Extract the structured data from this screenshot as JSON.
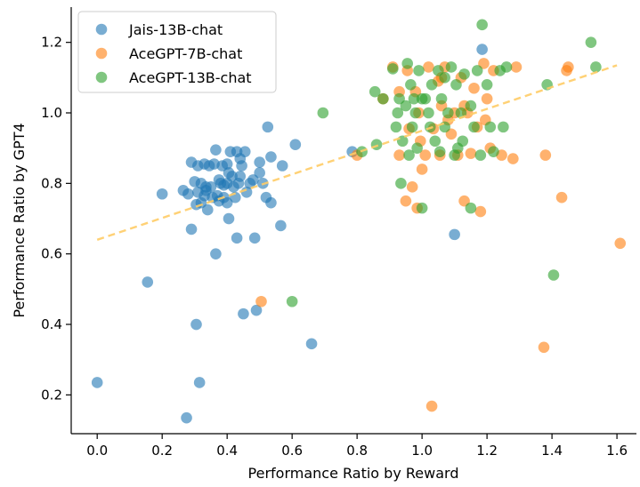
{
  "chart_data": {
    "type": "scatter",
    "xlabel": "Performance Ratio by Reward",
    "ylabel": "Performance Ratio by GPT4",
    "xlim": [
      -0.08,
      1.66
    ],
    "ylim": [
      0.09,
      1.3
    ],
    "x_ticks": [
      0.0,
      0.2,
      0.4,
      0.6,
      0.8,
      1.0,
      1.2,
      1.4,
      1.6
    ],
    "x_tick_labels": [
      "0.0",
      "0.2",
      "0.4",
      "0.6",
      "0.8",
      "1.0",
      "1.2",
      "1.4",
      "1.6"
    ],
    "y_ticks": [
      0.2,
      0.4,
      0.6,
      0.8,
      1.0,
      1.2
    ],
    "y_tick_labels": [
      "0.2",
      "0.4",
      "0.6",
      "0.8",
      "1.0",
      "1.2"
    ],
    "grid": false,
    "legend_position": "top-left",
    "trendline": {
      "style": "dashed",
      "color": "#ffcc66",
      "x": [
        0.0,
        1.6
      ],
      "y": [
        0.64,
        1.135
      ]
    },
    "series": [
      {
        "name": "Jais-13B-chat",
        "color": "#1f77b4",
        "points": [
          [
            0.0,
            0.235
          ],
          [
            0.155,
            0.52
          ],
          [
            0.2,
            0.77
          ],
          [
            0.265,
            0.78
          ],
          [
            0.275,
            0.135
          ],
          [
            0.28,
            0.77
          ],
          [
            0.29,
            0.67
          ],
          [
            0.29,
            0.86
          ],
          [
            0.3,
            0.805
          ],
          [
            0.305,
            0.4
          ],
          [
            0.305,
            0.74
          ],
          [
            0.31,
            0.85
          ],
          [
            0.31,
            0.775
          ],
          [
            0.315,
            0.235
          ],
          [
            0.32,
            0.8
          ],
          [
            0.32,
            0.745
          ],
          [
            0.33,
            0.765
          ],
          [
            0.33,
            0.855
          ],
          [
            0.335,
            0.79
          ],
          [
            0.335,
            0.78
          ],
          [
            0.34,
            0.725
          ],
          [
            0.345,
            0.85
          ],
          [
            0.35,
            0.79
          ],
          [
            0.355,
            0.76
          ],
          [
            0.36,
            0.855
          ],
          [
            0.365,
            0.6
          ],
          [
            0.365,
            0.895
          ],
          [
            0.37,
            0.765
          ],
          [
            0.375,
            0.75
          ],
          [
            0.38,
            0.8
          ],
          [
            0.385,
            0.85
          ],
          [
            0.39,
            0.795
          ],
          [
            0.39,
            0.76
          ],
          [
            0.4,
            0.745
          ],
          [
            0.4,
            0.8
          ],
          [
            0.4,
            0.855
          ],
          [
            0.405,
            0.7
          ],
          [
            0.41,
            0.89
          ],
          [
            0.415,
            0.82
          ],
          [
            0.42,
            0.79
          ],
          [
            0.425,
            0.76
          ],
          [
            0.43,
            0.645
          ],
          [
            0.43,
            0.89
          ],
          [
            0.435,
            0.8
          ],
          [
            0.44,
            0.82
          ],
          [
            0.445,
            0.85
          ],
          [
            0.45,
            0.43
          ],
          [
            0.455,
            0.89
          ],
          [
            0.46,
            0.775
          ],
          [
            0.47,
            0.8
          ],
          [
            0.48,
            0.81
          ],
          [
            0.485,
            0.645
          ],
          [
            0.49,
            0.44
          ],
          [
            0.5,
            0.86
          ],
          [
            0.5,
            0.83
          ],
          [
            0.51,
            0.8
          ],
          [
            0.52,
            0.76
          ],
          [
            0.525,
            0.96
          ],
          [
            0.535,
            0.745
          ],
          [
            0.535,
            0.875
          ],
          [
            0.565,
            0.68
          ],
          [
            0.57,
            0.85
          ],
          [
            0.61,
            0.91
          ],
          [
            0.66,
            0.345
          ],
          [
            0.785,
            0.89
          ],
          [
            1.1,
            0.655
          ],
          [
            1.185,
            1.18
          ],
          [
            0.405,
            0.83
          ],
          [
            0.44,
            0.87
          ],
          [
            0.375,
            0.81
          ]
        ]
      },
      {
        "name": "AceGPT-7B-chat",
        "color": "#ff7f0e",
        "points": [
          [
            0.505,
            0.465
          ],
          [
            0.8,
            0.88
          ],
          [
            0.88,
            1.04
          ],
          [
            0.91,
            1.13
          ],
          [
            0.93,
            0.88
          ],
          [
            0.95,
            0.75
          ],
          [
            0.955,
            1.12
          ],
          [
            0.96,
            0.955
          ],
          [
            0.97,
            0.79
          ],
          [
            0.98,
            1.06
          ],
          [
            0.985,
            0.73
          ],
          [
            0.99,
            1.0
          ],
          [
            0.995,
            0.92
          ],
          [
            1.0,
            0.84
          ],
          [
            1.01,
            0.88
          ],
          [
            1.02,
            1.13
          ],
          [
            1.03,
            0.168
          ],
          [
            1.035,
            0.955
          ],
          [
            1.05,
            1.09
          ],
          [
            1.055,
            0.88
          ],
          [
            1.06,
            1.02
          ],
          [
            1.07,
            1.13
          ],
          [
            1.08,
            0.98
          ],
          [
            1.09,
            0.94
          ],
          [
            1.1,
            1.0
          ],
          [
            1.11,
            0.88
          ],
          [
            1.12,
            1.1
          ],
          [
            1.13,
            0.75
          ],
          [
            1.14,
            1.0
          ],
          [
            1.15,
            0.885
          ],
          [
            1.16,
            1.07
          ],
          [
            1.17,
            0.96
          ],
          [
            1.18,
            0.72
          ],
          [
            1.19,
            1.14
          ],
          [
            1.2,
            1.04
          ],
          [
            1.21,
            0.9
          ],
          [
            1.22,
            1.12
          ],
          [
            1.245,
            0.88
          ],
          [
            1.28,
            0.87
          ],
          [
            1.29,
            1.13
          ],
          [
            1.375,
            0.335
          ],
          [
            1.38,
            0.88
          ],
          [
            1.43,
            0.76
          ],
          [
            1.445,
            1.12
          ],
          [
            1.45,
            1.13
          ],
          [
            1.61,
            0.63
          ],
          [
            0.93,
            1.06
          ],
          [
            1.06,
            1.1
          ],
          [
            1.13,
            1.02
          ],
          [
            1.195,
            0.98
          ]
        ]
      },
      {
        "name": "AceGPT-13B-chat",
        "color": "#2ca02c",
        "points": [
          [
            0.6,
            0.465
          ],
          [
            0.695,
            1.0
          ],
          [
            0.815,
            0.89
          ],
          [
            0.855,
            1.06
          ],
          [
            0.86,
            0.91
          ],
          [
            0.88,
            1.04
          ],
          [
            0.91,
            1.125
          ],
          [
            0.92,
            0.96
          ],
          [
            0.925,
            1.0
          ],
          [
            0.93,
            1.04
          ],
          [
            0.935,
            0.8
          ],
          [
            0.94,
            0.92
          ],
          [
            0.95,
            1.02
          ],
          [
            0.955,
            1.14
          ],
          [
            0.96,
            0.88
          ],
          [
            0.965,
            1.08
          ],
          [
            0.97,
            0.96
          ],
          [
            0.975,
            1.04
          ],
          [
            0.98,
            1.0
          ],
          [
            0.985,
            0.9
          ],
          [
            0.99,
            1.12
          ],
          [
            1.0,
            0.73
          ],
          [
            1.01,
            1.04
          ],
          [
            1.02,
            1.0
          ],
          [
            1.025,
            0.96
          ],
          [
            1.03,
            1.08
          ],
          [
            1.04,
            0.92
          ],
          [
            1.05,
            1.12
          ],
          [
            1.055,
            0.89
          ],
          [
            1.06,
            1.04
          ],
          [
            1.07,
            0.96
          ],
          [
            1.08,
            1.0
          ],
          [
            1.09,
            1.13
          ],
          [
            1.1,
            0.88
          ],
          [
            1.105,
            1.08
          ],
          [
            1.11,
            0.9
          ],
          [
            1.12,
            1.0
          ],
          [
            1.125,
            0.92
          ],
          [
            1.13,
            1.11
          ],
          [
            1.15,
            0.73
          ],
          [
            1.16,
            0.96
          ],
          [
            1.17,
            1.12
          ],
          [
            1.18,
            0.88
          ],
          [
            1.185,
            1.25
          ],
          [
            1.2,
            1.08
          ],
          [
            1.21,
            0.96
          ],
          [
            1.22,
            0.89
          ],
          [
            1.24,
            1.12
          ],
          [
            1.25,
            0.96
          ],
          [
            1.26,
            1.13
          ],
          [
            1.385,
            1.08
          ],
          [
            1.405,
            0.54
          ],
          [
            1.52,
            1.2
          ],
          [
            1.535,
            1.13
          ],
          [
            1.0,
            1.04
          ],
          [
            1.07,
            1.1
          ],
          [
            1.15,
            1.02
          ]
        ]
      }
    ]
  }
}
